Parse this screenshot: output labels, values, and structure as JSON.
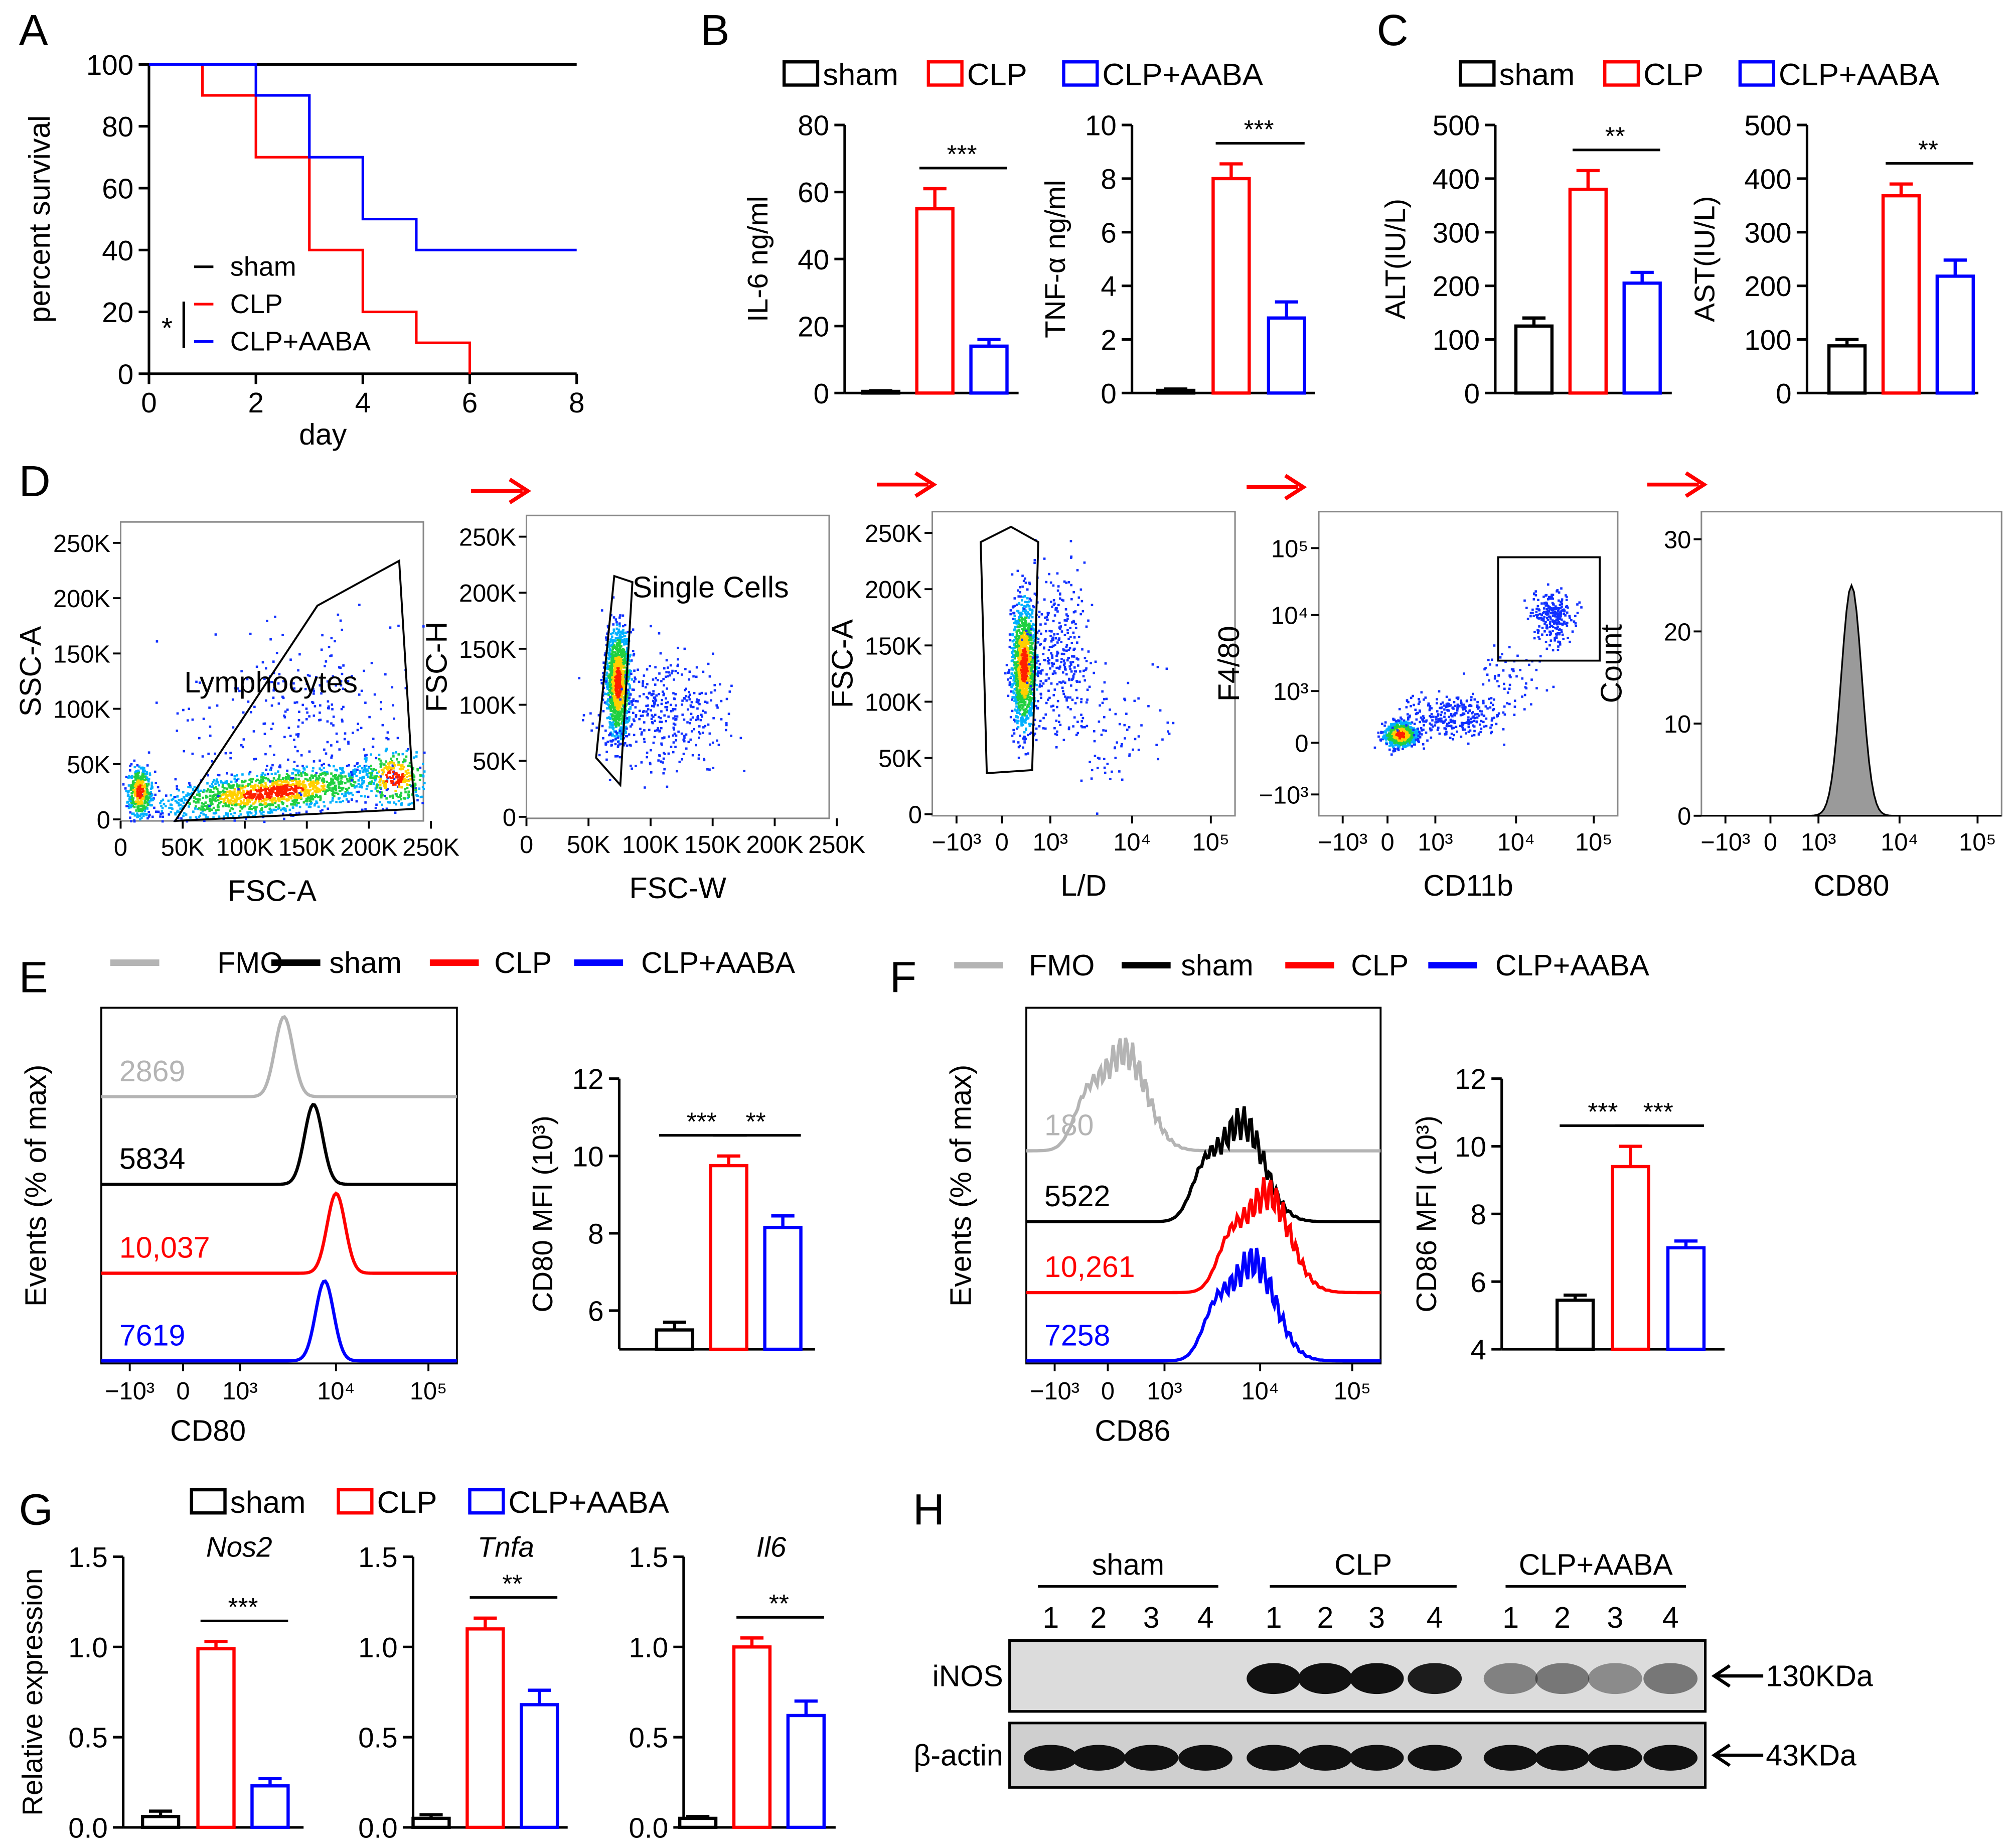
{
  "figure": {
    "panel_labels": [
      "A",
      "B",
      "C",
      "D",
      "E",
      "F",
      "G",
      "H"
    ]
  },
  "colors": {
    "sham": "#000000",
    "CLP": "#ff0000",
    "CLP+AABA": "#0000ff",
    "FMO": "#b4b4b4",
    "arrow": "#ff0000"
  },
  "legend_groups": [
    "sham",
    "CLP",
    "CLP+AABA"
  ],
  "legend_hist": [
    "FMO",
    "sham",
    "CLP",
    "CLP+AABA"
  ],
  "chart_data": [
    {
      "panel": "A",
      "type": "line",
      "step": true,
      "xlabel": "day",
      "ylabel": "percent survival",
      "xlim": [
        0,
        8
      ],
      "ylim": [
        0,
        100
      ],
      "xticks": [
        0,
        2,
        4,
        6,
        8
      ],
      "xtick_labels": [
        "0",
        "2",
        "4",
        "6",
        "8"
      ],
      "yticks": [
        0,
        20,
        40,
        60,
        80,
        100
      ],
      "ytick_labels": [
        "0",
        "20",
        "40",
        "60",
        "80",
        "100"
      ],
      "series": [
        {
          "name": "sham",
          "x": [
            0,
            8
          ],
          "y": [
            100,
            100
          ]
        },
        {
          "name": "CLP",
          "x": [
            0,
            1,
            2,
            3,
            4,
            5,
            6
          ],
          "y": [
            100,
            90,
            70,
            40,
            20,
            10,
            0
          ]
        },
        {
          "name": "CLP+AABA",
          "x": [
            0,
            2,
            3,
            4,
            5,
            8
          ],
          "y": [
            100,
            90,
            70,
            50,
            40,
            40
          ]
        }
      ],
      "annotation": "*"
    },
    {
      "panel": "B",
      "type": "bar",
      "categories": [
        "sham",
        "CLP",
        "CLP+AABA"
      ],
      "values": [
        0.5,
        55,
        14
      ],
      "errors": [
        0.2,
        6,
        2
      ],
      "ylabel": "IL-6 ng/ml",
      "ylim": [
        0,
        80
      ],
      "yticks": [
        0,
        20,
        40,
        60,
        80
      ],
      "ytick_labels": [
        "0",
        "20",
        "40",
        "60",
        "80"
      ],
      "significance": [
        {
          "from": 1,
          "to": 2,
          "label": "***"
        }
      ]
    },
    {
      "panel": "B",
      "type": "bar",
      "categories": [
        "sham",
        "CLP",
        "CLP+AABA"
      ],
      "values": [
        0.1,
        8.0,
        2.8
      ],
      "errors": [
        0.05,
        0.55,
        0.6
      ],
      "ylabel": "TNF-α ng/ml",
      "ylim": [
        0,
        10
      ],
      "yticks": [
        0,
        2,
        4,
        6,
        8,
        10
      ],
      "ytick_labels": [
        "0",
        "2",
        "4",
        "6",
        "8",
        "10"
      ],
      "significance": [
        {
          "from": 1,
          "to": 2,
          "label": "***"
        }
      ]
    },
    {
      "panel": "C",
      "type": "bar",
      "categories": [
        "sham",
        "CLP",
        "CLP+AABA"
      ],
      "values": [
        125,
        380,
        205
      ],
      "errors": [
        15,
        35,
        20
      ],
      "ylabel": "ALT(IU/L)",
      "ylim": [
        0,
        500
      ],
      "yticks": [
        0,
        100,
        200,
        300,
        400,
        500
      ],
      "ytick_labels": [
        "0",
        "100",
        "200",
        "300",
        "400",
        "500"
      ],
      "significance": [
        {
          "from": 1,
          "to": 2,
          "label": "**"
        }
      ]
    },
    {
      "panel": "C",
      "type": "bar",
      "categories": [
        "sham",
        "CLP",
        "CLP+AABA"
      ],
      "values": [
        88,
        368,
        218
      ],
      "errors": [
        12,
        22,
        30
      ],
      "ylabel": "AST(IU/L)",
      "ylim": [
        0,
        500
      ],
      "yticks": [
        0,
        100,
        200,
        300,
        400,
        500
      ],
      "ytick_labels": [
        "0",
        "100",
        "200",
        "300",
        "400",
        "500"
      ],
      "significance": [
        {
          "from": 1,
          "to": 2,
          "label": "**"
        }
      ]
    },
    {
      "panel": "D",
      "type": "scatter",
      "subtype": "flow-density",
      "xlabel": "FSC-A",
      "ylabel": "SSC-A",
      "xtick_labels": [
        "0",
        "50K",
        "100K",
        "150K",
        "200K",
        "250K"
      ],
      "ytick_labels": [
        "0",
        "50K",
        "100K",
        "150K",
        "200K",
        "250K"
      ],
      "gate": "Lymphocytes"
    },
    {
      "panel": "D",
      "type": "scatter",
      "subtype": "flow-density",
      "xlabel": "FSC-W",
      "ylabel": "FSC-H",
      "xtick_labels": [
        "0",
        "50K",
        "100K",
        "150K",
        "200K",
        "250K"
      ],
      "ytick_labels": [
        "0",
        "50K",
        "100K",
        "150K",
        "200K",
        "250K"
      ],
      "gate": "Single Cells"
    },
    {
      "panel": "D",
      "type": "scatter",
      "subtype": "flow-density",
      "xlabel": "L/D",
      "ylabel": "FSC-A",
      "xtick_labels": [
        "−10³",
        "0",
        "10³",
        "10⁴",
        "10⁵"
      ],
      "ytick_labels": [
        "0",
        "50K",
        "100K",
        "150K",
        "200K",
        "250K"
      ]
    },
    {
      "panel": "D",
      "type": "scatter",
      "subtype": "flow-density",
      "xlabel": "CD11b",
      "ylabel": "F4/80",
      "xtick_labels": [
        "−10³",
        "0",
        "10³",
        "10⁴",
        "10⁵"
      ],
      "ytick_labels": [
        "−10³",
        "0",
        "10³",
        "10⁴",
        "10⁵"
      ]
    },
    {
      "panel": "D",
      "type": "area",
      "subtype": "flow-histogram",
      "xlabel": "CD80",
      "ylabel": "Count",
      "xtick_labels": [
        "−10³",
        "0",
        "10³",
        "10⁴",
        "10⁵"
      ],
      "yticks": [
        0,
        10,
        20,
        30
      ],
      "ytick_labels": [
        "0",
        "10",
        "20",
        "30"
      ],
      "ylim": [
        0,
        33
      ],
      "peak_count": 25
    },
    {
      "panel": "E",
      "type": "area",
      "subtype": "flow-histogram-overlay",
      "xlabel": "CD80",
      "ylabel": "Events (% of max)",
      "xtick_labels": [
        "−10³",
        "0",
        "10³",
        "10⁴",
        "10⁵"
      ],
      "series": [
        {
          "name": "FMO",
          "mfi": 2869,
          "mfi_label": "2869"
        },
        {
          "name": "sham",
          "mfi": 5834,
          "mfi_label": "5834"
        },
        {
          "name": "CLP",
          "mfi": 10037,
          "mfi_label": "10,037"
        },
        {
          "name": "CLP+AABA",
          "mfi": 7619,
          "mfi_label": "7619"
        }
      ]
    },
    {
      "panel": "E",
      "type": "bar",
      "categories": [
        "sham",
        "CLP",
        "CLP+AABA"
      ],
      "values": [
        5.5,
        9.75,
        8.15
      ],
      "errors": [
        0.2,
        0.25,
        0.3
      ],
      "ylabel": "CD80 MFI (10³)",
      "ylim": [
        5,
        12
      ],
      "yticks": [
        6,
        8,
        10,
        12
      ],
      "ytick_labels": [
        "6",
        "8",
        "10",
        "12"
      ],
      "significance": [
        {
          "from": 0,
          "to": 1,
          "label": "***"
        },
        {
          "from": 1,
          "to": 2,
          "label": "**"
        }
      ]
    },
    {
      "panel": "F",
      "type": "area",
      "subtype": "flow-histogram-overlay",
      "xlabel": "CD86",
      "ylabel": "Events (% of max)",
      "xtick_labels": [
        "−10³",
        "0",
        "10³",
        "10⁴",
        "10⁵"
      ],
      "series": [
        {
          "name": "FMO",
          "mfi": 180,
          "mfi_label": "180"
        },
        {
          "name": "sham",
          "mfi": 5522,
          "mfi_label": "5522"
        },
        {
          "name": "CLP",
          "mfi": 10261,
          "mfi_label": "10,261"
        },
        {
          "name": "CLP+AABA",
          "mfi": 7258,
          "mfi_label": "7258"
        }
      ]
    },
    {
      "panel": "F",
      "type": "bar",
      "categories": [
        "sham",
        "CLP",
        "CLP+AABA"
      ],
      "values": [
        5.45,
        9.4,
        7.0
      ],
      "errors": [
        0.15,
        0.6,
        0.2
      ],
      "ylabel": "CD86 MFI (10³)",
      "ylim": [
        4,
        12
      ],
      "yticks": [
        4,
        6,
        8,
        10,
        12
      ],
      "ytick_labels": [
        "4",
        "6",
        "8",
        "10",
        "12"
      ],
      "significance": [
        {
          "from": 0,
          "to": 1,
          "label": "***"
        },
        {
          "from": 1,
          "to": 2,
          "label": "***"
        }
      ]
    },
    {
      "panel": "G",
      "type": "bar",
      "title": "Nos2",
      "categories": [
        "sham",
        "CLP",
        "CLP+AABA"
      ],
      "values": [
        0.06,
        0.99,
        0.23
      ],
      "errors": [
        0.03,
        0.04,
        0.04
      ],
      "ylabel": "Relative  expression",
      "ylim": [
        0,
        1.5
      ],
      "yticks": [
        0,
        0.5,
        1.0,
        1.5
      ],
      "ytick_labels": [
        "0.0",
        "0.5",
        "1.0",
        "1.5"
      ],
      "significance": [
        {
          "from": 1,
          "to": 2,
          "label": "***"
        }
      ]
    },
    {
      "panel": "G",
      "type": "bar",
      "title": "Tnfa",
      "categories": [
        "sham",
        "CLP",
        "CLP+AABA"
      ],
      "values": [
        0.05,
        1.1,
        0.68
      ],
      "errors": [
        0.02,
        0.06,
        0.08
      ],
      "ylim": [
        0,
        1.5
      ],
      "yticks": [
        0,
        0.5,
        1.0,
        1.5
      ],
      "ytick_labels": [
        "0.0",
        "0.5",
        "1.0",
        "1.5"
      ],
      "significance": [
        {
          "from": 1,
          "to": 2,
          "label": "**"
        }
      ]
    },
    {
      "panel": "G",
      "type": "bar",
      "title": "Il6",
      "categories": [
        "sham",
        "CLP",
        "CLP+AABA"
      ],
      "values": [
        0.05,
        1.0,
        0.62
      ],
      "errors": [
        0.01,
        0.05,
        0.08
      ],
      "ylim": [
        0,
        1.5
      ],
      "yticks": [
        0,
        0.5,
        1.0,
        1.5
      ],
      "ytick_labels": [
        "0.0",
        "0.5",
        "1.0",
        "1.5"
      ],
      "significance": [
        {
          "from": 1,
          "to": 2,
          "label": "**"
        }
      ]
    },
    {
      "panel": "H",
      "type": "table",
      "subtype": "western-blot",
      "groups": [
        {
          "name": "sham",
          "lanes": [
            "1",
            "2",
            "3",
            "4"
          ]
        },
        {
          "name": "CLP",
          "lanes": [
            "1",
            "2",
            "3",
            "4"
          ]
        },
        {
          "name": "CLP+AABA",
          "lanes": [
            "1",
            "2",
            "3",
            "4"
          ]
        }
      ],
      "rows": [
        {
          "name": "iNOS",
          "marker": "130KDa",
          "intensity": [
            0,
            0,
            0,
            0,
            1,
            1,
            1,
            0.95,
            0.45,
            0.5,
            0.4,
            0.5
          ]
        },
        {
          "name": "β-actin",
          "marker": "43KDa",
          "intensity": [
            1,
            1,
            1,
            1,
            1,
            1,
            1,
            1,
            1,
            1,
            1,
            1
          ]
        }
      ]
    }
  ]
}
